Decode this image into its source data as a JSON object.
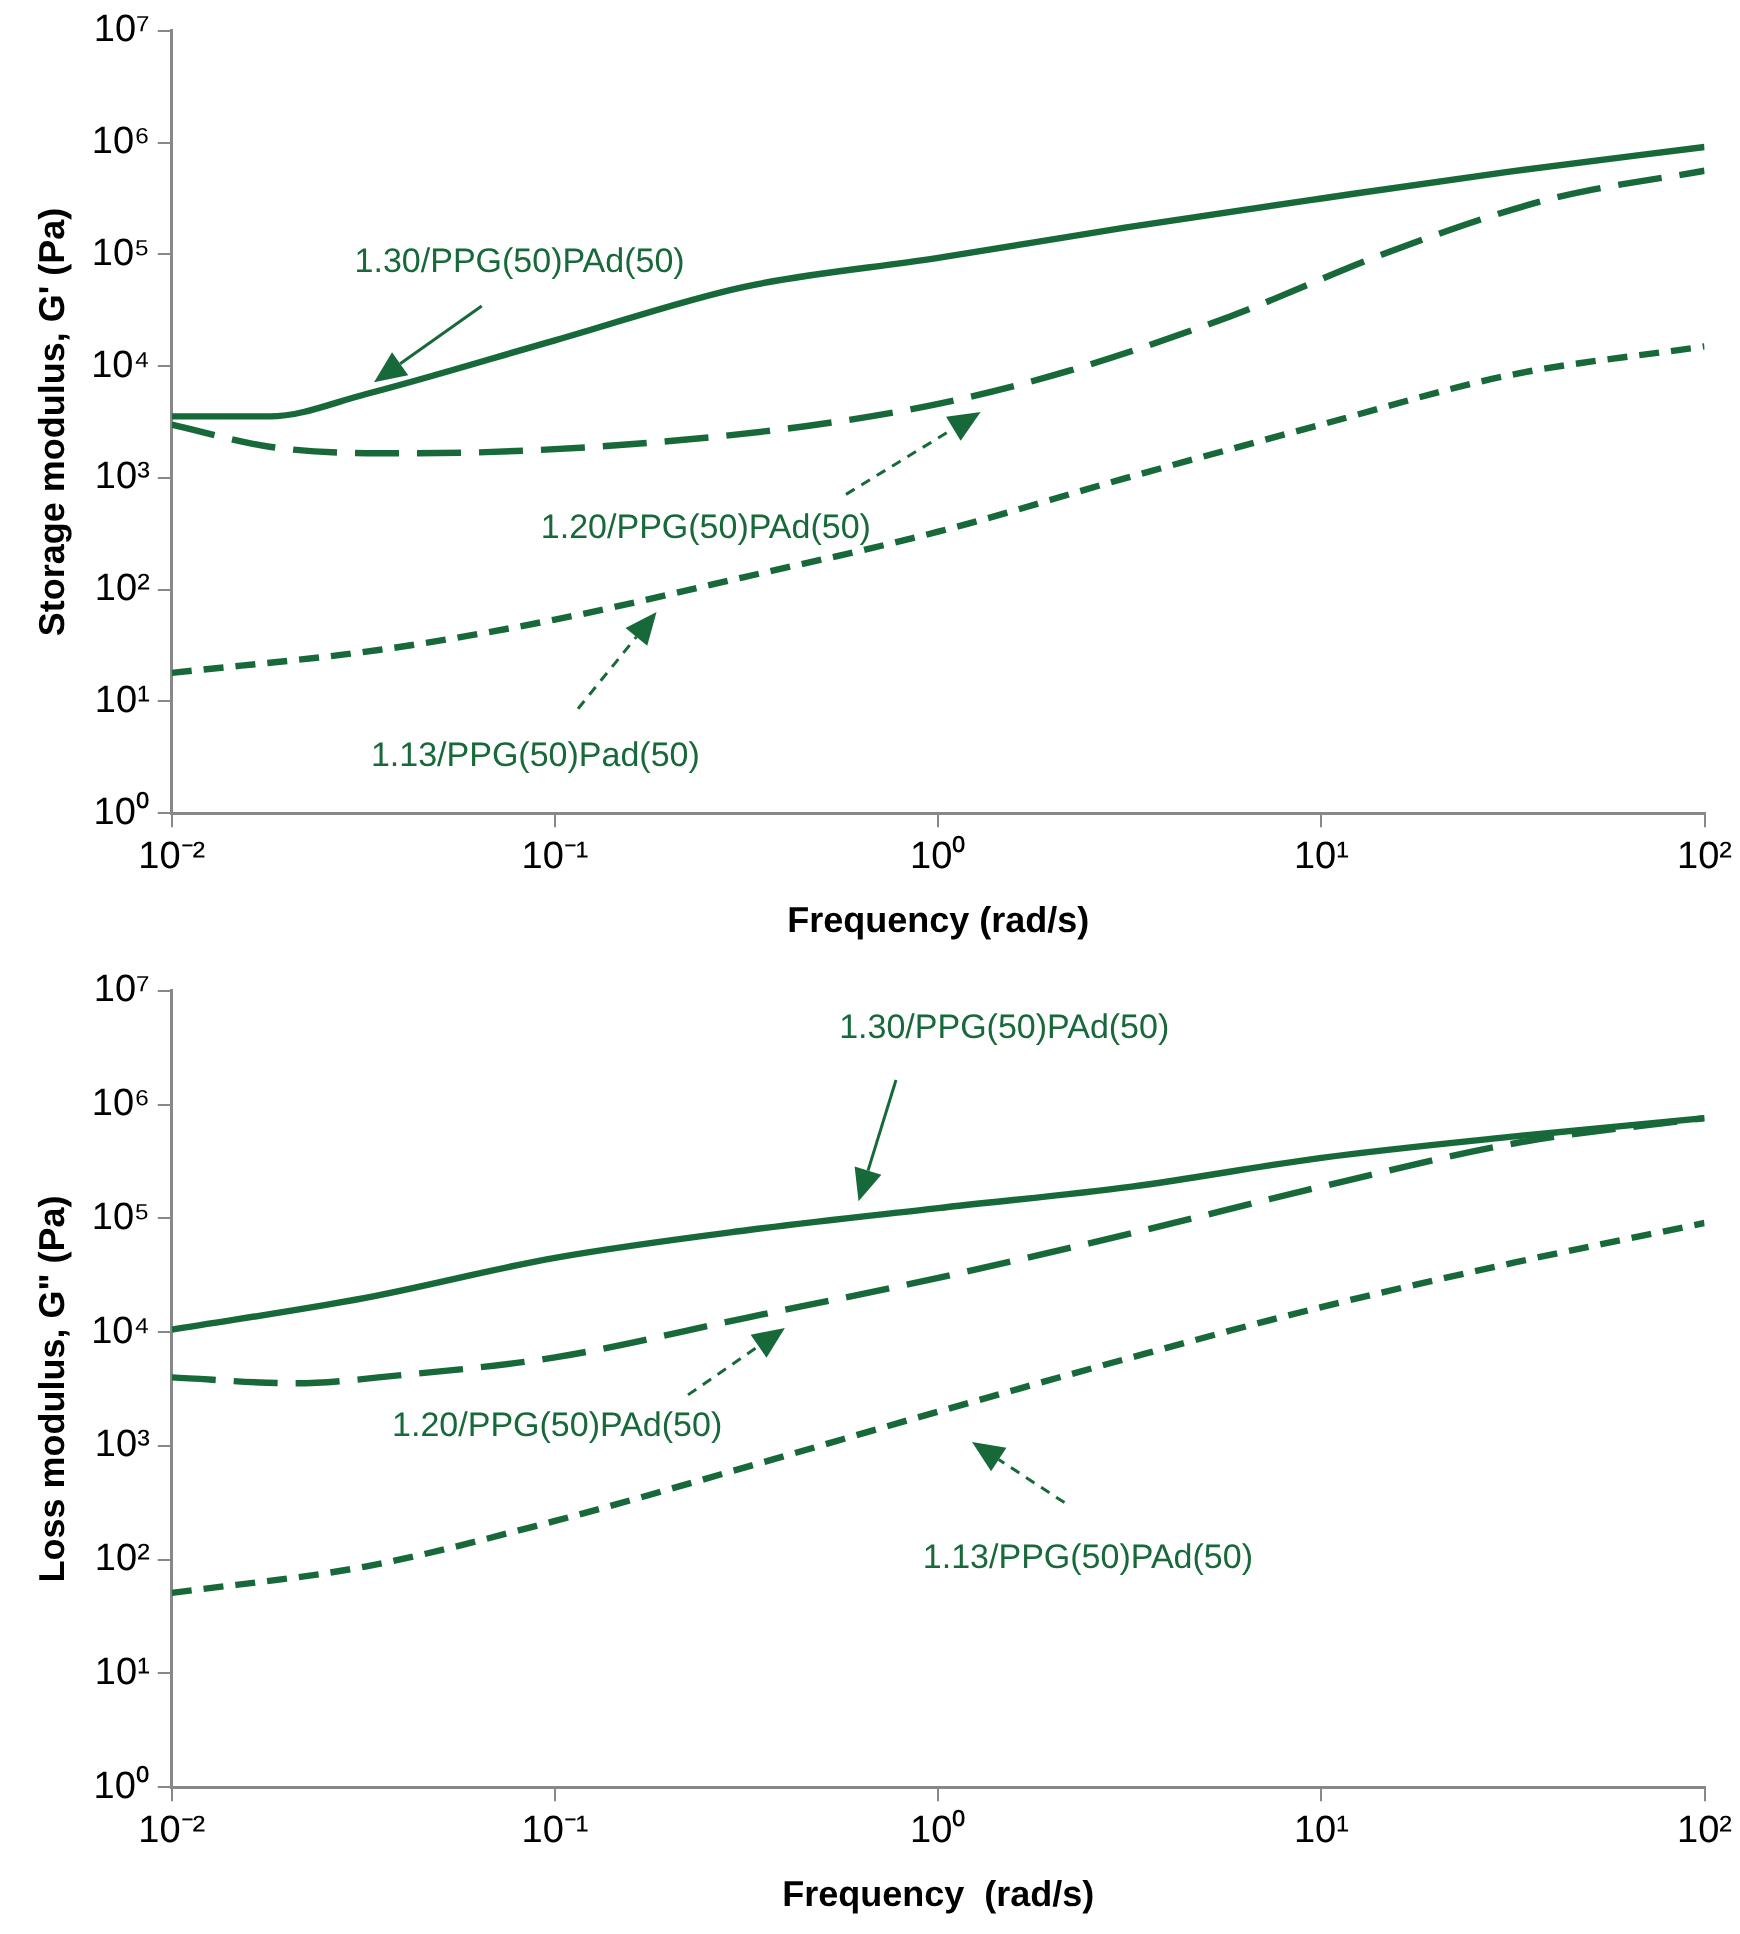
{
  "chart_data": [
    {
      "type": "line",
      "xlabel": "Frequency (rad/s)",
      "ylabel": "Storage modulus, G' (Pa)",
      "log": "xy",
      "grid": false,
      "legend": false,
      "marker": "none",
      "xlim": [
        0.01,
        100
      ],
      "xticks": [
        {
          "value": 0.01,
          "label": "10⁻²"
        },
        {
          "value": 0.1,
          "label": "10⁻¹"
        },
        {
          "value": 1,
          "label": "10⁰"
        },
        {
          "value": 10,
          "label": "10¹"
        },
        {
          "value": 100,
          "label": "10²"
        }
      ],
      "ylim": [
        1,
        10000000
      ],
      "yticks": [
        {
          "value": 1,
          "label": "10⁰"
        },
        {
          "value": 10,
          "label": "10¹"
        },
        {
          "value": 100,
          "label": "10²"
        },
        {
          "value": 1000,
          "label": "10³"
        },
        {
          "value": 10000,
          "label": "10⁴"
        },
        {
          "value": 100000,
          "label": "10⁵"
        },
        {
          "value": 1000000,
          "label": "10⁶"
        },
        {
          "value": 10000000,
          "label": "10⁷"
        }
      ],
      "series": [
        {
          "color": "#17693a",
          "line_style": "solid",
          "x": [
            0.01,
            0.018,
            0.032,
            0.1,
            0.31,
            1,
            3.1,
            10,
            31,
            100
          ],
          "values": [
            3550,
            3550,
            5600,
            17000,
            51000,
            93000,
            174000,
            316000,
            550000,
            912000
          ]
        },
        {
          "color": "#17693a",
          "line_style": "dashed",
          "x": [
            0.01,
            0.018,
            0.035,
            0.066,
            0.17,
            0.45,
            1,
            2.2,
            5.8,
            15,
            40,
            100
          ],
          "values": [
            3000,
            1900,
            1660,
            1700,
            2040,
            2900,
            4600,
            9100,
            28000,
            105000,
            316000,
            560000
          ]
        },
        {
          "color": "#17693a",
          "line_style": "dashed",
          "x": [
            0.01,
            0.035,
            0.1,
            0.31,
            1,
            3.1,
            10,
            31,
            100
          ],
          "values": [
            18,
            29,
            54,
            129,
            330,
            1000,
            3000,
            8300,
            15000
          ]
        }
      ],
      "annotations": [
        "1.30/PPG(50)PAd(50)",
        "1.20/PPG(50)PAd(50)",
        "1.13/PPG(50)Pad(50)"
      ]
    },
    {
      "type": "line",
      "xlabel": "Frequency  (rad/s)",
      "ylabel": "Loss modulus, G\" (Pa)",
      "log": "xy",
      "grid": false,
      "legend": false,
      "marker": "none",
      "xlim": [
        0.01,
        100
      ],
      "xticks": [
        {
          "value": 0.01,
          "label": "10⁻²"
        },
        {
          "value": 0.1,
          "label": "10⁻¹"
        },
        {
          "value": 1,
          "label": "10⁰"
        },
        {
          "value": 10,
          "label": "10¹"
        },
        {
          "value": 100,
          "label": "10²"
        }
      ],
      "ylim": [
        1,
        10000000
      ],
      "yticks": [
        {
          "value": 1,
          "label": "10⁰"
        },
        {
          "value": 10,
          "label": "10¹"
        },
        {
          "value": 100,
          "label": "10²"
        },
        {
          "value": 1000,
          "label": "10³"
        },
        {
          "value": 10000,
          "label": "10⁴"
        },
        {
          "value": 100000,
          "label": "10⁵"
        },
        {
          "value": 1000000,
          "label": "10⁶"
        },
        {
          "value": 10000000,
          "label": "10⁷"
        }
      ],
      "series": [
        {
          "color": "#17693a",
          "line_style": "solid",
          "x": [
            0.01,
            0.032,
            0.1,
            0.32,
            1,
            3.2,
            10,
            32,
            100
          ],
          "values": [
            10500,
            20000,
            45000,
            79000,
            123000,
            190000,
            340000,
            525000,
            760000
          ]
        },
        {
          "color": "#17693a",
          "line_style": "dashed",
          "x": [
            0.01,
            0.021,
            0.04,
            0.1,
            0.32,
            1,
            3.2,
            10,
            32,
            100
          ],
          "values": [
            4000,
            3550,
            4200,
            6000,
            13500,
            30000,
            74000,
            190000,
            457000,
            760000
          ]
        },
        {
          "color": "#17693a",
          "line_style": "dashed",
          "x": [
            0.01,
            0.032,
            0.1,
            0.32,
            1,
            3.2,
            10,
            32,
            100
          ],
          "values": [
            51,
            87,
            219,
            660,
            2000,
            6000,
            16600,
            41000,
            91000
          ]
        }
      ],
      "annotations": [
        "1.30/PPG(50)PAd(50)",
        "1.20/PPG(50)PAd(50)",
        "1.13/PPG(50)PAd(50)"
      ]
    }
  ]
}
